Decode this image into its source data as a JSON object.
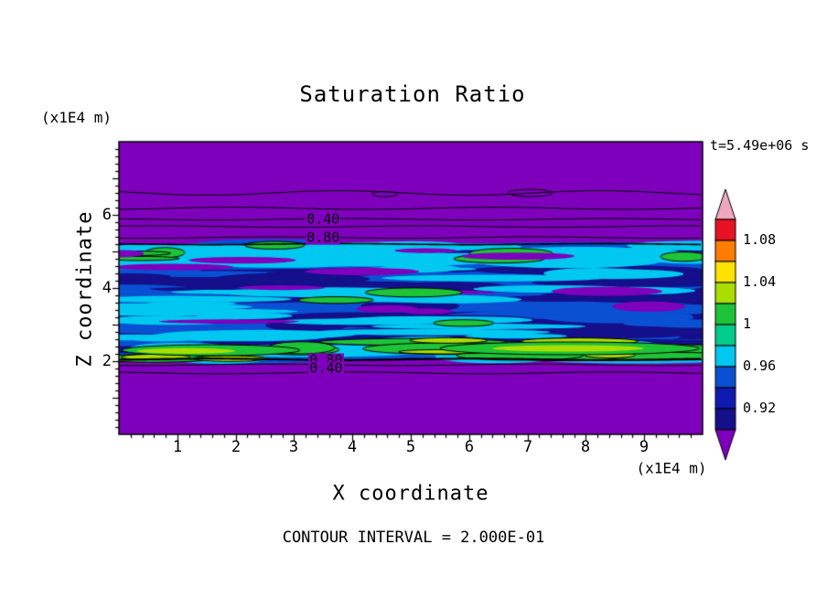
{
  "title": "Saturation Ratio",
  "time_label": "t=5.49e+06 s",
  "footer": "CONTOUR INTERVAL = 2.000E-01",
  "x_axis": {
    "label": "X coordinate",
    "unit": "(x1E4 m)",
    "tick_labels": [
      "1",
      "2",
      "3",
      "4",
      "5",
      "6",
      "7",
      "8",
      "9"
    ]
  },
  "y_axis": {
    "label": "Z coordinate",
    "unit": "(x1E4 m)",
    "tick_labels": [
      "2",
      "4",
      "6"
    ]
  },
  "colorbar": {
    "labels": [
      "1.08",
      "1.04",
      "1",
      "0.96",
      "0.92"
    ],
    "segments": [
      "#e81123",
      "#ff7d00",
      "#ffe200",
      "#aade00",
      "#1dc437",
      "#00cc8c",
      "#00c8f0",
      "#0a50d2",
      "#0f1bb0",
      "#140f8a"
    ],
    "tip_top": "#f0a8c0",
    "tip_bottom": "#7f00bc"
  },
  "palette": {
    "purple": "#7f00bc",
    "navy": "#140f8a",
    "blue": "#0a50d2",
    "cyan": "#00c8f0",
    "green": "#1dc437",
    "chartreuse": "#aade00",
    "black": "#000000"
  },
  "chart_data": {
    "type": "heatmap",
    "title": "Saturation Ratio",
    "x_label": "X coordinate",
    "z_label": "Z coordinate",
    "units": "x1E4 m",
    "time": "t=5.49e+06 s",
    "contour_interval": 0.2,
    "x_range": [
      0,
      10
    ],
    "z_range": [
      0,
      8
    ],
    "x_ticks": [
      1,
      2,
      3,
      4,
      5,
      6,
      7,
      8,
      9
    ],
    "z_ticks": [
      2,
      4,
      6
    ],
    "colorbar_values": [
      1.08,
      1.04,
      1,
      0.96,
      0.92
    ],
    "background_region": "saturation below 0.90 rendered purple above z=5.2 and below z=2.05",
    "band": {
      "z": [
        2.05,
        5.2
      ]
    },
    "contour_lines": [
      {
        "z": 6.6,
        "amp": 2.5
      },
      {
        "z": 6.18,
        "amp": 1.2
      },
      {
        "z": 5.88,
        "amp": 0.8
      },
      {
        "z": 5.68,
        "amp": 0.8
      },
      {
        "z": 5.38,
        "amp": 0.8
      },
      {
        "z": 5.2,
        "amp": 0.6,
        "width": 1.6
      },
      {
        "z": 2.05,
        "amp": 0.8,
        "width": 2.2
      },
      {
        "z": 1.9,
        "amp": 0.8
      },
      {
        "z": 1.68,
        "amp": 1.0
      }
    ],
    "closed_contours": [
      {
        "x": 7.05,
        "z": 6.6,
        "rx": 0.38,
        "rz": 0.1
      },
      {
        "x": 4.55,
        "z": 6.57,
        "rx": 0.22,
        "rz": 0.07
      }
    ],
    "contour_labels": [
      {
        "text": "0.40",
        "x": 3.5,
        "z": 5.88
      },
      {
        "text": "0.80",
        "x": 3.5,
        "z": 5.38
      },
      {
        "text": "0.80",
        "x": 3.55,
        "z": 2.02
      },
      {
        "text": "0.40",
        "x": 3.55,
        "z": 1.8
      }
    ],
    "zones": [
      {
        "z": [
          2.05,
          5.2
        ],
        "streaks": [
          {
            "color": "blue",
            "n": 75,
            "rx": 110,
            "ry": 5.5
          }
        ]
      },
      {
        "z": [
          2.45,
          5.05
        ],
        "streaks": [
          {
            "color": "navy",
            "n": 38,
            "rx": 95,
            "ry": 5
          }
        ]
      },
      {
        "z": [
          2.5,
          5.15
        ],
        "streaks": [
          {
            "color": "cyan",
            "n": 40,
            "rx": 85,
            "ry": 4
          }
        ]
      },
      {
        "z": [
          4.7,
          5.18
        ],
        "streaks": [
          {
            "color": "cyan",
            "n": 22,
            "rx": 75,
            "ry": 5
          },
          {
            "color": "green",
            "n": 7,
            "rx": 38,
            "ry": 4,
            "outline": true
          },
          {
            "color": "purple",
            "n": 4,
            "rx": 50,
            "ry": 3
          }
        ]
      },
      {
        "z": [
          3.0,
          4.6
        ],
        "streaks": [
          {
            "color": "purple",
            "n": 9,
            "rx": 55,
            "ry": 4
          },
          {
            "color": "green",
            "n": 3,
            "rx": 36,
            "ry": 4,
            "outline": true
          }
        ]
      },
      {
        "z": [
          2.05,
          2.6
        ],
        "streaks": [
          {
            "color": "cyan",
            "n": 14,
            "rx": 90,
            "ry": 5
          },
          {
            "color": "green",
            "n": 12,
            "rx": 80,
            "ry": 5,
            "outline": true
          },
          {
            "color": "chartreuse",
            "n": 8,
            "rx": 55,
            "ry": 3.5,
            "outline": true
          }
        ]
      }
    ],
    "features": [
      {
        "color": "green",
        "x": [
          0.05,
          3.1
        ],
        "z": 2.3,
        "ry": 6,
        "outline": true
      },
      {
        "color": "green",
        "x": [
          5.5,
          9.95
        ],
        "z": 2.35,
        "ry": 7,
        "outline": true
      },
      {
        "color": "chartreuse",
        "x": [
          0.3,
          2.0
        ],
        "z": 2.28,
        "ry": 3
      },
      {
        "color": "chartreuse",
        "x": [
          6.4,
          9.0
        ],
        "z": 2.35,
        "ry": 3.5
      }
    ]
  }
}
